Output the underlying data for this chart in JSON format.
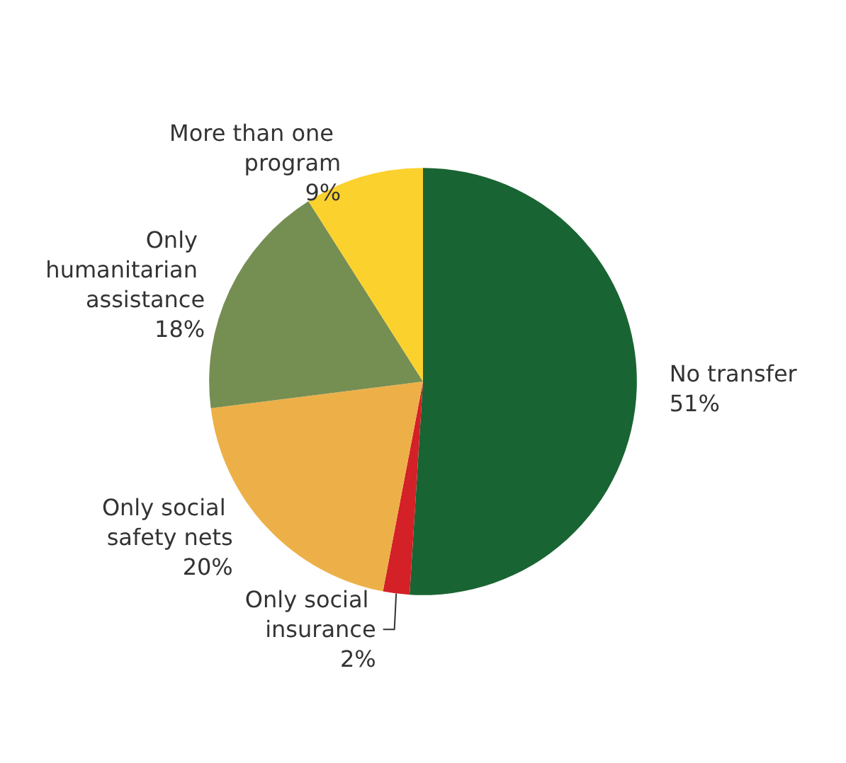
{
  "chart_data": {
    "type": "pie",
    "categories": [
      "No transfer",
      "Only social insurance",
      "Only social safety nets",
      "Only humanitarian assistance",
      "More than one program"
    ],
    "values": [
      51,
      2,
      20,
      18,
      9
    ],
    "colors": [
      "#196433",
      "#d42027",
      "#edb048",
      "#758e52",
      "#fbd12e"
    ],
    "value_labels": [
      "51%",
      "2%",
      "20%",
      "18%",
      "9%"
    ],
    "legend": false
  }
}
